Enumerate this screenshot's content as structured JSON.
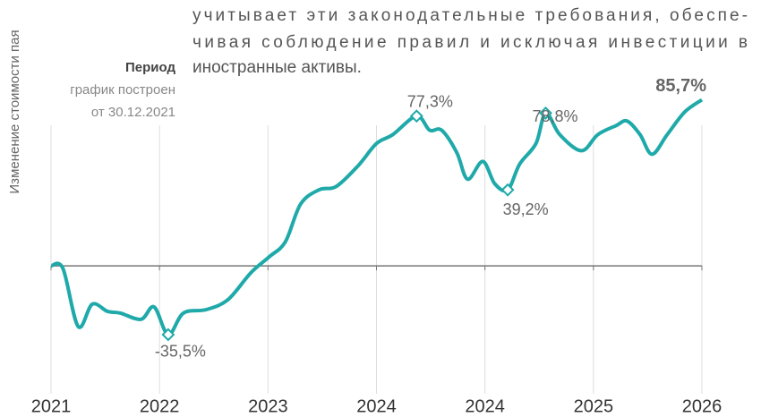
{
  "text_lines": [
    "учитывает эти законодательные требования, обеспе-",
    "чивая соблюдение правил и исключая инвестиции в",
    "иностранные активы."
  ],
  "period": {
    "title": "Период",
    "line1": "график построен",
    "line2": "от 30.12.2021"
  },
  "chart_data": {
    "type": "line",
    "ylabel": "Изменение стоимости пая",
    "xlim": [
      0,
      6
    ],
    "xticks": [
      {
        "value": 0,
        "label": "2021"
      },
      {
        "value": 1,
        "label": "2022"
      },
      {
        "value": 2,
        "label": "2023"
      },
      {
        "value": 3,
        "label": "2024"
      },
      {
        "value": 4,
        "label": "2024"
      },
      {
        "value": 5,
        "label": "2025"
      },
      {
        "value": 6,
        "label": "2026"
      }
    ],
    "ylim": [
      -66,
      91
    ],
    "grid": true,
    "series": [
      {
        "name": "Изменение стоимости пая",
        "color": "#1fa9a9",
        "x": [
          0,
          0.11,
          0.25,
          0.38,
          0.52,
          0.64,
          0.83,
          0.95,
          1.08,
          1.22,
          1.43,
          1.63,
          1.84,
          2.01,
          2.16,
          2.3,
          2.47,
          2.63,
          2.83,
          3.0,
          3.15,
          3.37,
          3.49,
          3.6,
          3.74,
          3.84,
          3.98,
          4.09,
          4.21,
          4.32,
          4.47,
          4.56,
          4.69,
          4.89,
          5.04,
          5.21,
          5.31,
          5.43,
          5.54,
          5.68,
          5.84,
          6.0
        ],
        "values": [
          0,
          -1.4,
          -31.3,
          -19.8,
          -23.5,
          -24.4,
          -27.6,
          -21.2,
          -35.5,
          -24.4,
          -22.6,
          -17.5,
          -3.7,
          4.6,
          12.4,
          31.8,
          39.2,
          41.0,
          51.6,
          63.1,
          67.7,
          77.3,
          70.0,
          70.0,
          58.5,
          44.7,
          53.9,
          42.4,
          39.2,
          52.5,
          63.1,
          78.8,
          67.7,
          59.4,
          67.7,
          72.4,
          74.7,
          67.7,
          57.6,
          67.7,
          79.3,
          85.7
        ]
      }
    ],
    "annotations": [
      {
        "x": 1.08,
        "value": -35.5,
        "label": "-35,5%",
        "marker": true
      },
      {
        "x": 3.37,
        "value": 77.3,
        "label": "77,3%",
        "marker": true
      },
      {
        "x": 4.21,
        "value": 39.2,
        "label": "39,2%",
        "marker": true
      },
      {
        "x": 4.56,
        "value": 78.8,
        "label": "78,8%",
        "marker": true
      },
      {
        "x": 6.0,
        "value": 85.7,
        "label": "85,7%",
        "marker": false
      }
    ]
  }
}
